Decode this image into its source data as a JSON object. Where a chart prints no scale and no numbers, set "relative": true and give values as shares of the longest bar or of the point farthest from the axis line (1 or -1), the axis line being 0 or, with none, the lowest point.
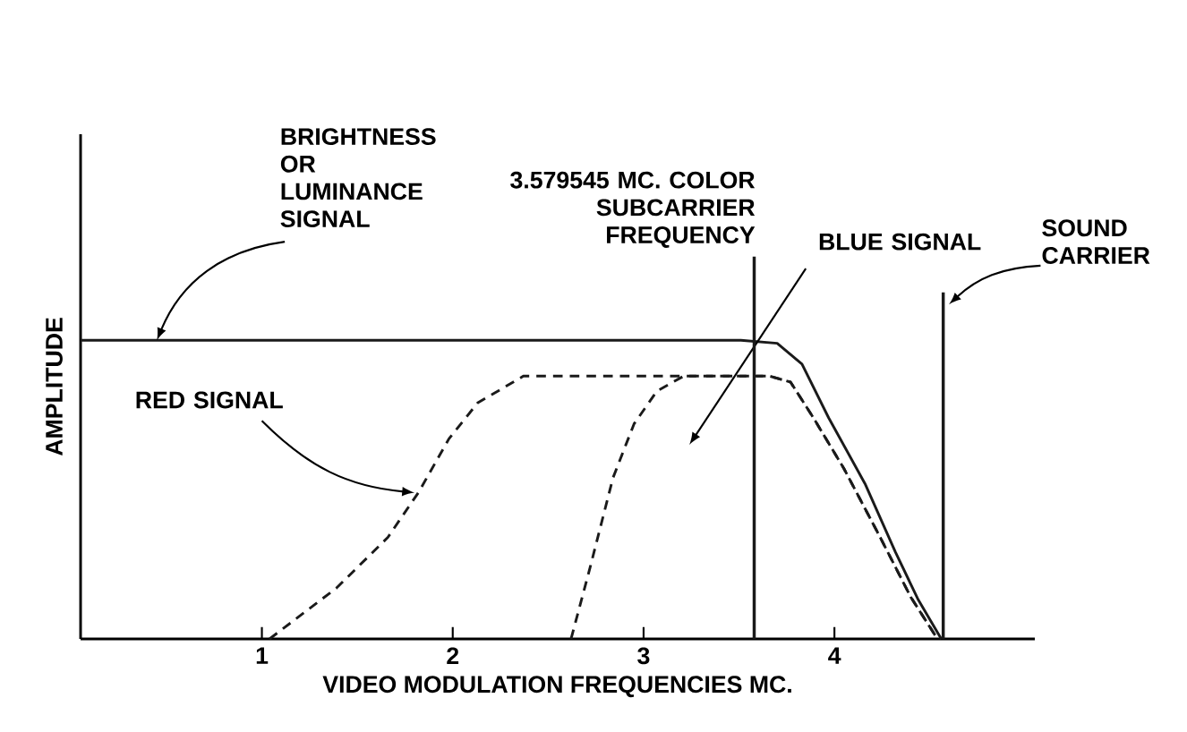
{
  "chart_data": {
    "type": "line",
    "relative": true,
    "xlabel": "VIDEO MODULATION FREQUENCIES MC.",
    "ylabel": "AMPLITUDE",
    "xlim": [
      0.05,
      5.05
    ],
    "xticks": [
      1,
      2,
      3,
      4
    ],
    "tick_labels": "x",
    "marker": "none",
    "series": [
      {
        "name": "BRIGHTNESS OR LUMINANCE SIGNAL",
        "color": "#1a1a1a",
        "line_style": "solid",
        "x": [
          0.05,
          3.51,
          3.7,
          3.83,
          3.97,
          4.16,
          4.32,
          4.44,
          4.56
        ],
        "values": [
          1,
          1,
          0.99,
          0.92,
          0.74,
          0.52,
          0.29,
          0.13,
          0
        ]
      },
      {
        "name": "RED SIGNAL",
        "color": "#1a1a1a",
        "line_style": "dashed",
        "x": [
          1.04,
          1.39,
          1.66,
          1.82,
          1.98,
          2.13,
          2.37,
          2.6,
          3.66,
          3.77,
          3.89,
          4.05,
          4.24,
          4.4,
          4.54
        ],
        "values": [
          0,
          0.17,
          0.34,
          0.49,
          0.67,
          0.79,
          0.88,
          0.88,
          0.88,
          0.86,
          0.74,
          0.57,
          0.34,
          0.14,
          0
        ]
      },
      {
        "name": "BLUE SIGNAL",
        "color": "#1a1a1a",
        "line_style": "dashed",
        "x": [
          2.62,
          2.72,
          2.84,
          2.95,
          3.07,
          3.21,
          3.66,
          3.77,
          3.89,
          4.05,
          4.24,
          4.4,
          4.54
        ],
        "values": [
          0,
          0.24,
          0.54,
          0.72,
          0.83,
          0.88,
          0.88,
          0.86,
          0.74,
          0.57,
          0.34,
          0.14,
          0
        ]
      }
    ],
    "ref_lines": [
      {
        "axis": "x",
        "value": 3.579545,
        "label": "3.579545 MC. COLOR SUBCARRIER FREQUENCY",
        "color": "#1a1a1a"
      },
      {
        "axis": "x",
        "value": 4.57,
        "label": "SOUND CARRIER",
        "color": "#1a1a1a"
      }
    ]
  }
}
